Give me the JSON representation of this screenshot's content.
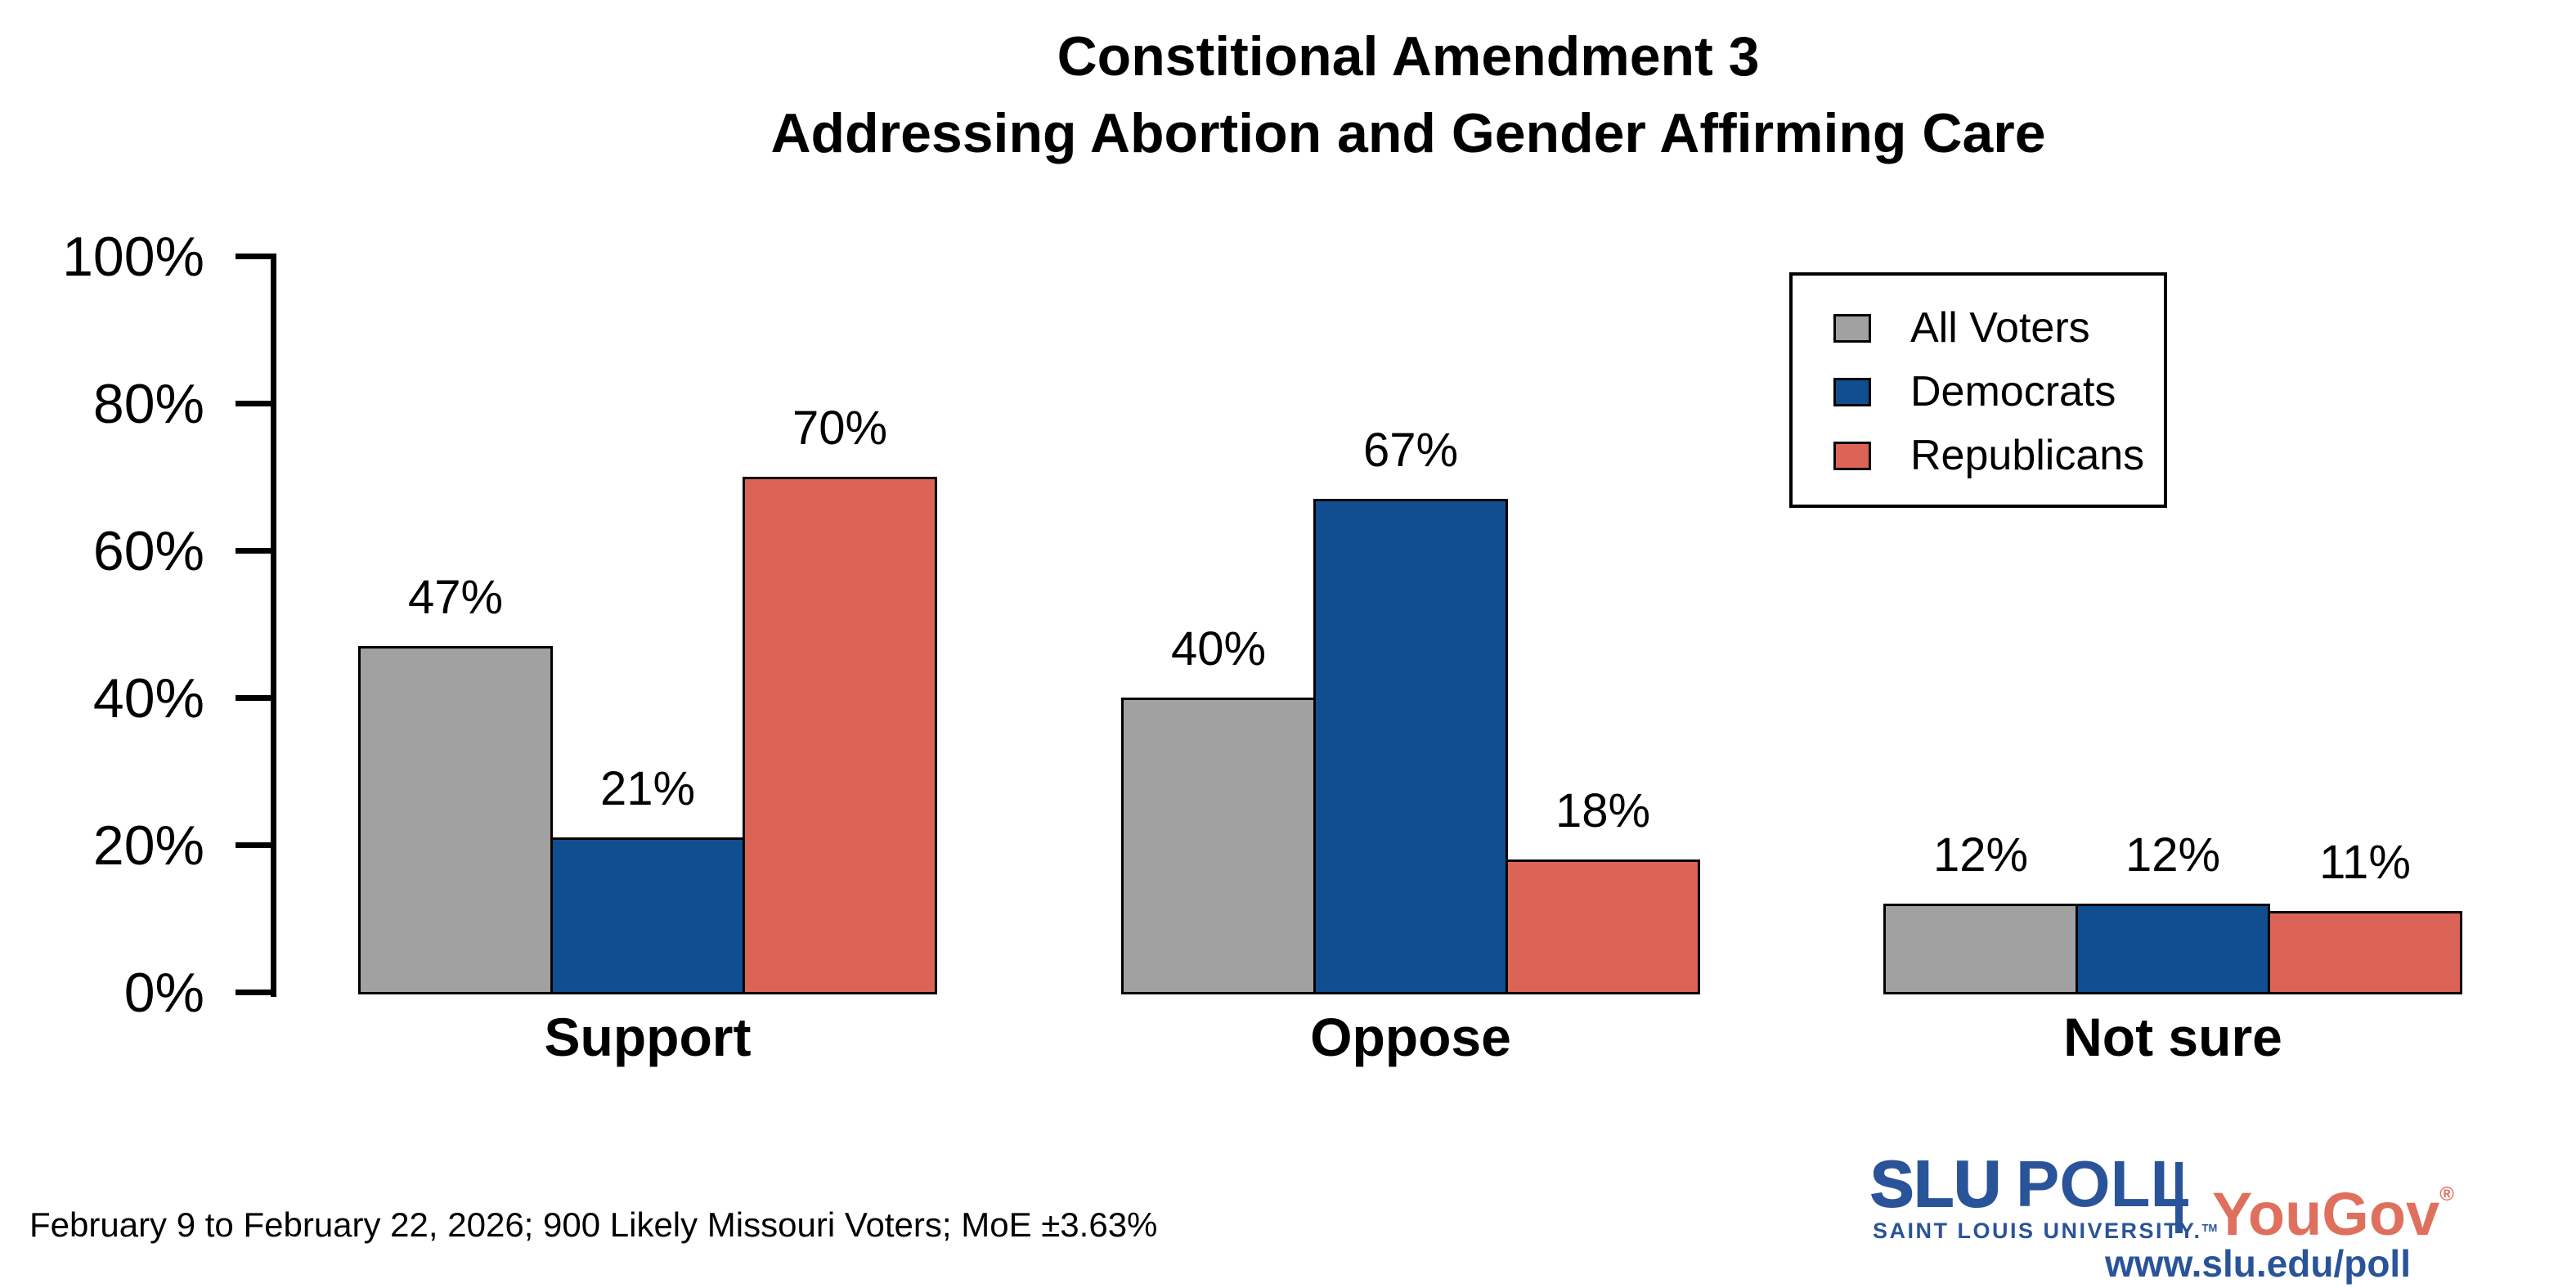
{
  "title": {
    "line1": "Constitional Amendment 3",
    "line2": "Addressing Abortion and Gender Affirming Care"
  },
  "chart_data": {
    "type": "bar",
    "title_lines": [
      "Constitional Amendment 3",
      "Addressing Abortion and Gender Affirming Care"
    ],
    "categories": [
      "Support",
      "Oppose",
      "Not sure"
    ],
    "series": [
      {
        "name": "All Voters",
        "color": "#A1A1A1",
        "values": [
          47,
          40,
          12
        ]
      },
      {
        "name": "Democrats",
        "color": "#114E90",
        "values": [
          21,
          67,
          12
        ]
      },
      {
        "name": "Republicans",
        "color": "#DC6456",
        "values": [
          70,
          18,
          11
        ]
      }
    ],
    "value_labels": [
      "47%",
      "21%",
      "70%",
      "40%",
      "67%",
      "18%",
      "12%",
      "12%",
      "11%"
    ],
    "value_suffix": "%",
    "xlabel": "",
    "ylabel": "",
    "ylim": [
      0,
      100
    ],
    "yticks": [
      "0%",
      "20%",
      "40%",
      "60%",
      "80%",
      "100%"
    ],
    "grid": false,
    "legend_position": "top-right",
    "bar_outline_color": "#000000"
  },
  "legend": {
    "items": [
      {
        "label": "All Voters",
        "color": "#A1A1A1"
      },
      {
        "label": "Democrats",
        "color": "#114E90"
      },
      {
        "label": "Republicans",
        "color": "#DC6456"
      }
    ]
  },
  "footer": {
    "note": "February 9 to February 22, 2026; 900 Likely Missouri Voters; MoE ±3.63%"
  },
  "branding": {
    "slu": "SLU",
    "poll": "POLL",
    "slu_sub": "SAINT LOUIS UNIVERSITY.",
    "slu_tm": "TM",
    "partner": "YouGov",
    "partner_reg": "®",
    "url": "www.slu.edu/poll",
    "slu_blue": "#2A5499",
    "yougov_red": "#E0705E"
  }
}
